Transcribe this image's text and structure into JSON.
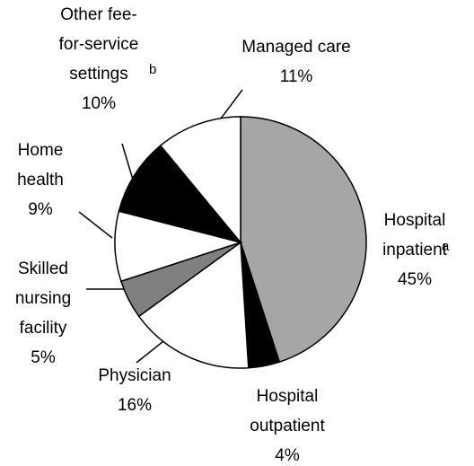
{
  "chart_data": {
    "type": "pie",
    "categories": [
      "Hospital\ninpatient",
      "Hospital\noutpatient",
      "Physician",
      "Skilled\nnursing\nfacility",
      "Home\nhealth",
      "Other fee-\nfor-service\nsettings",
      "Managed care"
    ],
    "category_notes": [
      "a",
      null,
      null,
      null,
      null,
      "b",
      null
    ],
    "values": [
      45,
      4,
      16,
      5,
      9,
      10,
      11
    ],
    "value_labels": [
      "45%",
      "4%",
      "16%",
      "5%",
      "9%",
      "10%",
      "11%"
    ],
    "colors": [
      "#a6a6a6",
      "#000000",
      "#ffffff",
      "#808080",
      "#ffffff",
      "#000000",
      "#ffffff"
    ]
  }
}
